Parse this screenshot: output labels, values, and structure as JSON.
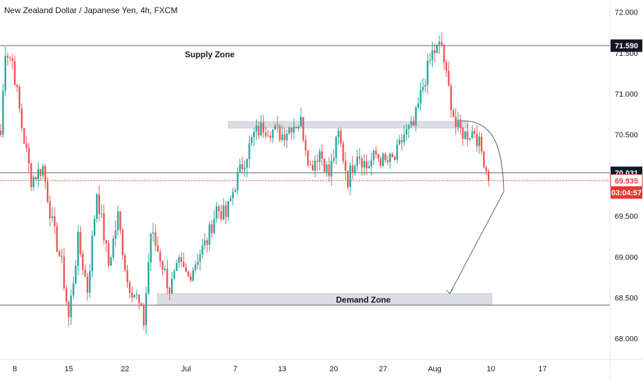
{
  "chart_data": {
    "type": "candlestick",
    "title": "New Zealand Dollar / Japanese Yen, 4h, FXCM",
    "ylim": [
      67.75,
      72.15
    ],
    "y_ticks": [
      "72.000",
      "71.500",
      "71.000",
      "70.500",
      "70.000",
      "69.500",
      "69.000",
      "68.500",
      "68.000"
    ],
    "x_ticks": [
      "8",
      "15",
      "22",
      "Jul",
      "7",
      "13",
      "20",
      "27",
      "Aug",
      "10",
      "17"
    ],
    "grid": false,
    "colors": {
      "up": "#26a69a",
      "down": "#ef5350",
      "zone": "#d1d4dc",
      "line": "#5d606b",
      "last_price": "#e53935"
    },
    "annotations": {
      "supply_zone": {
        "label": "Supply Zone",
        "price": 71.59
      },
      "demand_zone": {
        "label": "Demand Zone",
        "top": 68.55,
        "bottom": 68.41
      },
      "resistance_band": {
        "top": 70.66,
        "bottom": 70.58
      },
      "horizontal_levels": [
        71.59,
        70.031,
        68.409
      ]
    },
    "price_labels": [
      {
        "text": "71.590",
        "price": 71.59,
        "style": "dark"
      },
      {
        "text": "70.031",
        "price": 70.031,
        "style": "dark"
      },
      {
        "text": "69.935",
        "price": 69.935,
        "style": "red-outline"
      },
      {
        "text": "03:04:57",
        "price": 69.79,
        "style": "red"
      }
    ],
    "current_price": 69.935,
    "anchors": [
      [
        0,
        70.5
      ],
      [
        2,
        71.55
      ],
      [
        5,
        71.4
      ],
      [
        9,
        70.6
      ],
      [
        13,
        69.95
      ],
      [
        18,
        70.1
      ],
      [
        22,
        69.4
      ],
      [
        26,
        68.9
      ],
      [
        29,
        68.25
      ],
      [
        33,
        69.2
      ],
      [
        37,
        68.6
      ],
      [
        41,
        69.8
      ],
      [
        46,
        68.9
      ],
      [
        50,
        69.5
      ],
      [
        54,
        68.7
      ],
      [
        58,
        68.5
      ],
      [
        61,
        68.2
      ],
      [
        64,
        69.3
      ],
      [
        68,
        69.0
      ],
      [
        72,
        68.6
      ],
      [
        76,
        68.9
      ],
      [
        80,
        68.75
      ],
      [
        84,
        69.0
      ],
      [
        88,
        69.2
      ],
      [
        92,
        69.6
      ],
      [
        96,
        69.5
      ],
      [
        100,
        69.9
      ],
      [
        104,
        70.2
      ],
      [
        108,
        70.5
      ],
      [
        112,
        70.6
      ],
      [
        116,
        70.55
      ],
      [
        120,
        70.5
      ],
      [
        124,
        70.62
      ],
      [
        128,
        70.65
      ],
      [
        132,
        70.1
      ],
      [
        136,
        70.3
      ],
      [
        140,
        70.0
      ],
      [
        144,
        70.5
      ],
      [
        148,
        69.95
      ],
      [
        152,
        70.3
      ],
      [
        156,
        70.1
      ],
      [
        160,
        70.25
      ],
      [
        164,
        70.15
      ],
      [
        168,
        70.2
      ],
      [
        172,
        70.5
      ],
      [
        176,
        70.6
      ],
      [
        180,
        71.1
      ],
      [
        184,
        71.5
      ],
      [
        188,
        71.6
      ],
      [
        190,
        71.2
      ],
      [
        194,
        70.6
      ],
      [
        198,
        70.5
      ],
      [
        202,
        70.55
      ],
      [
        206,
        70.2
      ],
      [
        208,
        69.95
      ]
    ],
    "candle_count": 209
  }
}
